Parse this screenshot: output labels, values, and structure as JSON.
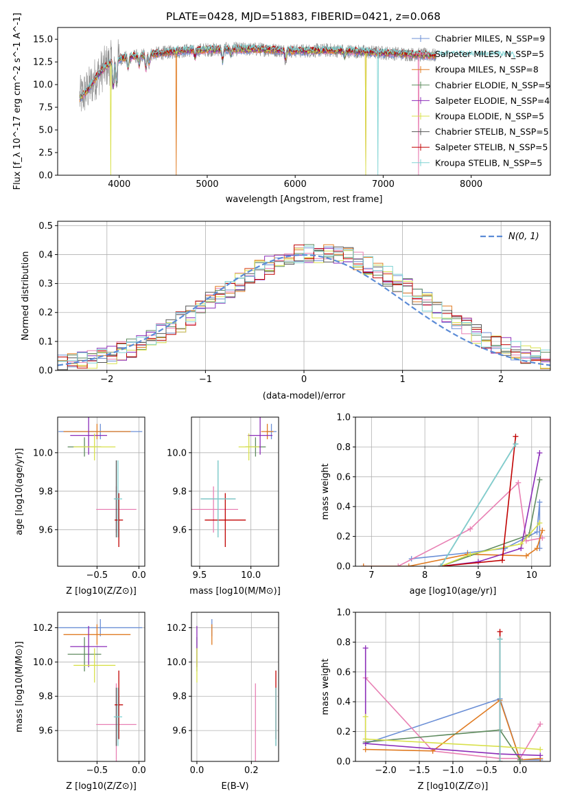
{
  "figure": {
    "title": "PLATE=0428, MJD=51883, FIBERID=0421, z=0.068"
  },
  "colors": {
    "Chabrier MILES": "#6b8fd6",
    "Salpeter MILES": "#e87fb3",
    "Kroupa MILES": "#e07a20",
    "Chabrier ELODIE": "#5e8a5e",
    "Salpeter ELODIE": "#8b2cb8",
    "Kroupa ELODIE": "#d8e04a",
    "Chabrier STELIB": "#555555",
    "Salpeter STELIB": "#c00000",
    "Kroupa STELIB": "#7ed3d3",
    "data": "#888888",
    "gaussian": "#5b8bd6",
    "grid": "#b0b0b0"
  },
  "chart_data": [
    {
      "id": "spectrum",
      "type": "line",
      "title": "PLATE=0428, MJD=51883, FIBERID=0421, z=0.068",
      "xlabel": "wavelength [Angstrom, rest frame]",
      "ylabel": "Flux [f_λ 10^-17 erg cm^-2 s^-1 A^-1]",
      "xlim": [
        3300,
        8900
      ],
      "ylim": [
        0,
        16.3
      ],
      "xticks": [
        4000,
        5000,
        6000,
        7000,
        8000
      ],
      "yticks": [
        0.0,
        2.5,
        5.0,
        7.5,
        10.0,
        12.5,
        15.0
      ],
      "ytick_labels": [
        "0.0",
        "2.5",
        "5.0",
        "7.5",
        "10.0",
        "12.5",
        "15.0"
      ],
      "grid": false,
      "legend_position": "top-right",
      "legend": [
        {
          "label": "Chabrier MILES, N_SSP=9",
          "series": "Chabrier MILES"
        },
        {
          "label": "Salpeter MILES, N_SSP=5",
          "series": "Salpeter MILES"
        },
        {
          "label": "Kroupa MILES, N_SSP=8",
          "series": "Kroupa MILES"
        },
        {
          "label": "Chabrier ELODIE, N_SSP=5",
          "series": "Chabrier ELODIE"
        },
        {
          "label": "Salpeter ELODIE, N_SSP=4",
          "series": "Salpeter ELODIE"
        },
        {
          "label": "Kroupa ELODIE, N_SSP=5",
          "series": "Kroupa ELODIE"
        },
        {
          "label": "Chabrier STELIB, N_SSP=5",
          "series": "Chabrier STELIB"
        },
        {
          "label": "Salpeter STELIB, N_SSP=5",
          "series": "Salpeter STELIB"
        },
        {
          "label": "Kroupa STELIB, N_SSP=5",
          "series": "Kroupa STELIB"
        }
      ],
      "continuum": {
        "x": [
          3550,
          3650,
          3750,
          3850,
          3950,
          4100,
          4300,
          4500,
          4800,
          5200,
          5600,
          6000,
          6400,
          6800,
          7200,
          7600
        ],
        "y": [
          8.5,
          9.5,
          11.0,
          12.0,
          12.8,
          13.0,
          13.3,
          13.5,
          13.8,
          13.9,
          13.9,
          13.7,
          13.8,
          13.6,
          13.4,
          13.2
        ]
      },
      "data_range": [
        3550,
        7600
      ],
      "model_range": [
        3550,
        7600
      ],
      "kroupa_stelib_range": [
        3550,
        8500
      ]
    },
    {
      "id": "residuals",
      "type": "histogram",
      "xlabel": "(data-model)/error",
      "ylabel": "Normed distribution",
      "xlim": [
        -2.5,
        2.5
      ],
      "ylim": [
        0,
        0.515
      ],
      "xticks": [
        -2,
        -1,
        0,
        1,
        2
      ],
      "xtick_labels": [
        "−2",
        "−1",
        "0",
        "1",
        "2"
      ],
      "yticks": [
        0.0,
        0.1,
        0.2,
        0.3,
        0.4,
        0.5
      ],
      "ytick_labels": [
        "0.0",
        "0.1",
        "0.2",
        "0.3",
        "0.4",
        "0.5"
      ],
      "grid": true,
      "bin_width": 0.1,
      "gaussian_label": "N(0, 1)",
      "legend_position": "top-right"
    },
    {
      "id": "age-vs-Z",
      "type": "errorbar",
      "xlabel": "Z [log10(Z/Z⊙)]",
      "ylabel": "age  [log10(age/yr)]",
      "xlim": [
        -0.97,
        0.07
      ],
      "ylim": [
        9.41,
        10.185
      ],
      "xticks": [
        -0.5,
        0.0
      ],
      "xtick_labels": [
        "−0.5",
        "0.0"
      ],
      "yticks": [
        9.6,
        9.8,
        10.0
      ],
      "ytick_labels": [
        "9.6",
        "9.8",
        "10.0"
      ],
      "grid": true
    },
    {
      "id": "age-vs-mass",
      "type": "errorbar",
      "xlabel": "mass [log10(M/M⊙)]",
      "ylabel": "",
      "xlim": [
        9.42,
        10.27
      ],
      "ylim": [
        9.41,
        10.185
      ],
      "xticks": [
        9.5,
        10.0
      ],
      "xtick_labels": [
        "9.5",
        "10.0"
      ],
      "yticks": [
        9.6,
        9.8,
        10.0
      ],
      "ytick_labels": [
        "9.6",
        "9.8",
        "10.0"
      ],
      "grid": true
    },
    {
      "id": "weight-vs-age",
      "type": "line",
      "xlabel": "age  [log10(age/yr)]",
      "ylabel": "mass weight",
      "xlim": [
        6.7,
        10.35
      ],
      "ylim": [
        0,
        1.0
      ],
      "xticks": [
        7,
        8,
        9,
        10
      ],
      "xtick_labels": [
        "7",
        "8",
        "9",
        "10"
      ],
      "yticks": [
        0.0,
        0.2,
        0.4,
        0.6,
        0.8,
        1.0
      ],
      "ytick_labels": [
        "0.0",
        "0.2",
        "0.4",
        "0.6",
        "0.8",
        "1.0"
      ],
      "grid": true
    },
    {
      "id": "mass-vs-Z",
      "type": "errorbar",
      "xlabel": "Z [log10(Z/Z⊙)]",
      "ylabel": "mass [log10(M/M⊙)]",
      "xlim": [
        -0.97,
        0.07
      ],
      "ylim": [
        9.42,
        10.29
      ],
      "xticks": [
        -0.5,
        0.0
      ],
      "xtick_labels": [
        "−0.5",
        "0.0"
      ],
      "yticks": [
        9.6,
        9.8,
        10.0,
        10.2
      ],
      "ytick_labels": [
        "9.6",
        "9.8",
        "10.0",
        "10.2"
      ],
      "grid": true
    },
    {
      "id": "mass-vs-ebv",
      "type": "errorbar",
      "xlabel": "E(B-V)",
      "ylabel": "",
      "xlim": [
        -0.02,
        0.3
      ],
      "ylim": [
        9.42,
        10.29
      ],
      "xticks": [
        0.0,
        0.2
      ],
      "xtick_labels": [
        "0.0",
        "0.2"
      ],
      "yticks": [
        9.6,
        9.8,
        10.0,
        10.2
      ],
      "ytick_labels": [
        "9.6",
        "9.8",
        "10.0",
        "10.2"
      ],
      "grid": true
    },
    {
      "id": "weight-vs-Z",
      "type": "line",
      "xlabel": "Z [log10(Z/Z⊙)]",
      "ylabel": "mass weight",
      "xlim": [
        -2.45,
        0.45
      ],
      "ylim": [
        0,
        1.0
      ],
      "xticks": [
        -2.0,
        -1.5,
        -1.0,
        -0.5,
        0.0
      ],
      "xtick_labels": [
        "−2.0",
        "−1.5",
        "−1.0",
        "−0.5",
        "0.0"
      ],
      "yticks": [
        0.0,
        0.2,
        0.4,
        0.6,
        0.8,
        1.0
      ],
      "ytick_labels": [
        "0.0",
        "0.2",
        "0.4",
        "0.6",
        "0.8",
        "1.0"
      ],
      "grid": true
    }
  ],
  "fits": [
    {
      "name": "Chabrier MILES",
      "Z": -0.46,
      "Zerr": 0.5,
      "age": 10.11,
      "ageerr": 0.04,
      "mass": 10.2,
      "masserr": 0.05,
      "ebv": 0.055,
      "ebverr": 0.0,
      "age_w": [
        [
          7.75,
          0.05
        ],
        [
          8.8,
          0.09
        ],
        [
          9.5,
          0.12
        ],
        [
          10.1,
          0.23
        ],
        [
          10.15,
          0.43
        ],
        [
          10.15,
          0.12
        ]
      ],
      "Z_w": [
        [
          -2.3,
          0.12
        ],
        [
          -0.3,
          0.42
        ],
        [
          0.0,
          0.01
        ],
        [
          0.3,
          0.01
        ]
      ]
    },
    {
      "name": "Salpeter MILES",
      "Z": -0.27,
      "Zerr": 0.24,
      "age": 9.705,
      "ageerr": 0.12,
      "mass": 9.635,
      "masserr": 0.24,
      "ebv": 0.215,
      "ebverr": 0.0,
      "age_w": [
        [
          6.85,
          0.0
        ],
        [
          7.5,
          0.0
        ],
        [
          8.85,
          0.25
        ],
        [
          9.75,
          0.56
        ],
        [
          9.9,
          0.17
        ],
        [
          10.2,
          0.19
        ]
      ],
      "Z_w": [
        [
          -2.3,
          0.56
        ],
        [
          -1.3,
          0.07
        ],
        [
          -0.3,
          0.02
        ],
        [
          0.0,
          0.02
        ],
        [
          0.3,
          0.25
        ]
      ]
    },
    {
      "name": "Kroupa MILES",
      "Z": -0.5,
      "Zerr": 0.4,
      "age": 10.11,
      "ageerr": 0.04,
      "mass": 10.16,
      "masserr": 0.06,
      "ebv": 0.055,
      "ebverr": 0.0,
      "age_w": [
        [
          6.85,
          0.0
        ],
        [
          7.7,
          0.0
        ],
        [
          8.8,
          0.08
        ],
        [
          9.9,
          0.07
        ],
        [
          10.1,
          0.12
        ],
        [
          10.2,
          0.24
        ]
      ],
      "Z_w": [
        [
          -2.3,
          0.08
        ],
        [
          -1.3,
          0.07
        ],
        [
          -0.3,
          0.41
        ],
        [
          0.0,
          0.01
        ],
        [
          0.3,
          0.02
        ]
      ]
    },
    {
      "name": "Chabrier ELODIE",
      "Z": -0.65,
      "Zerr": 0.2,
      "age": 10.03,
      "ageerr": 0.05,
      "mass": 10.045,
      "masserr": 0.1,
      "ebv": 0.0,
      "ebverr": 0.0,
      "age_w": [
        [
          8.3,
          0.0
        ],
        [
          9.95,
          0.21
        ],
        [
          10.15,
          0.58
        ]
      ],
      "Z_w": [
        [
          -2.3,
          0.13
        ],
        [
          -0.3,
          0.21
        ],
        [
          0.0,
          0.01
        ]
      ]
    },
    {
      "name": "Salpeter ELODIE",
      "Z": -0.6,
      "Zerr": 0.22,
      "age": 10.09,
      "ageerr": 0.1,
      "mass": 10.09,
      "masserr": 0.12,
      "ebv": 0.0,
      "ebverr": 0.0,
      "age_w": [
        [
          8.3,
          0.0
        ],
        [
          9.0,
          0.03
        ],
        [
          9.8,
          0.12
        ],
        [
          10.15,
          0.76
        ]
      ],
      "Z_w": [
        [
          -2.3,
          0.76
        ],
        [
          -2.3,
          0.12
        ],
        [
          -0.3,
          0.05
        ],
        [
          0.3,
          0.04
        ]
      ]
    },
    {
      "name": "Kroupa ELODIE",
      "Z": -0.53,
      "Zerr": 0.25,
      "age": 10.03,
      "ageerr": 0.07,
      "mass": 9.98,
      "masserr": 0.1,
      "ebv": 0.0,
      "ebverr": 0.0,
      "age_w": [
        [
          8.3,
          0.0
        ],
        [
          8.85,
          0.08
        ],
        [
          9.8,
          0.15
        ],
        [
          10.15,
          0.29
        ]
      ],
      "Z_w": [
        [
          -2.3,
          0.3
        ],
        [
          -2.3,
          0.15
        ],
        [
          -0.3,
          0.1
        ],
        [
          0.3,
          0.08
        ]
      ]
    },
    {
      "name": "Chabrier STELIB",
      "Z": -0.27,
      "Zerr": 0.02,
      "age": 9.76,
      "ageerr": 0.2,
      "mass": 9.68,
      "masserr": 0.17,
      "ebv": 0.29,
      "ebverr": 0.0,
      "age_w": [
        [
          8.3,
          0.0
        ],
        [
          9.7,
          0.82
        ]
      ],
      "Z_w": [
        [
          -0.3,
          0.82
        ],
        [
          -0.3,
          0.0
        ]
      ]
    },
    {
      "name": "Salpeter STELIB",
      "Z": -0.24,
      "Zerr": 0.05,
      "age": 9.65,
      "ageerr": 0.14,
      "mass": 9.75,
      "masserr": 0.2,
      "ebv": 0.29,
      "ebverr": 0.0,
      "age_w": [
        [
          8.3,
          0.0
        ],
        [
          9.45,
          0.04
        ],
        [
          9.7,
          0.87
        ]
      ],
      "Z_w": [
        [
          -0.3,
          0.87
        ],
        [
          -0.3,
          0.0
        ]
      ]
    },
    {
      "name": "Kroupa STELIB",
      "Z": -0.25,
      "Zerr": 0.05,
      "age": 9.76,
      "ageerr": 0.2,
      "mass": 9.68,
      "masserr": 0.17,
      "ebv": 0.29,
      "ebverr": 0.0,
      "age_w": [
        [
          8.3,
          0.0
        ],
        [
          9.7,
          0.82
        ]
      ],
      "Z_w": [
        [
          -0.3,
          0.82
        ],
        [
          -0.3,
          0.0
        ]
      ]
    }
  ]
}
